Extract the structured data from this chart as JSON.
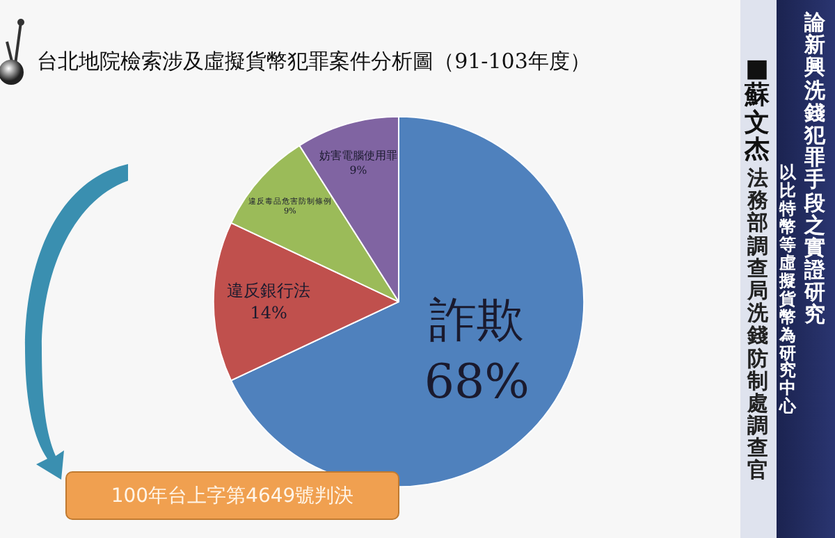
{
  "chart_data": {
    "type": "pie",
    "title": "台北地院檢索涉及虛擬貨幣犯罪案件分析圖（91-103年度）",
    "categories": [
      "詐欺",
      "違反銀行法",
      "違反毒品危害防制條例",
      "妨害電腦使用罪"
    ],
    "values": [
      68,
      14,
      9,
      9
    ],
    "value_labels": [
      "68%",
      "14%",
      "9%",
      "9%"
    ],
    "colors": [
      "#4f81bd",
      "#c0504d",
      "#9bbb59",
      "#8064a2"
    ],
    "legend": false,
    "annotations": [
      "100年台上字第4649號判決",
      "論新興洗錢犯罪手段之實證研究",
      "以比特幣等虛擬貨幣為研究中心",
      "■ 蘇文杰",
      "法務部調查局洗錢防制處調查官"
    ]
  }
}
